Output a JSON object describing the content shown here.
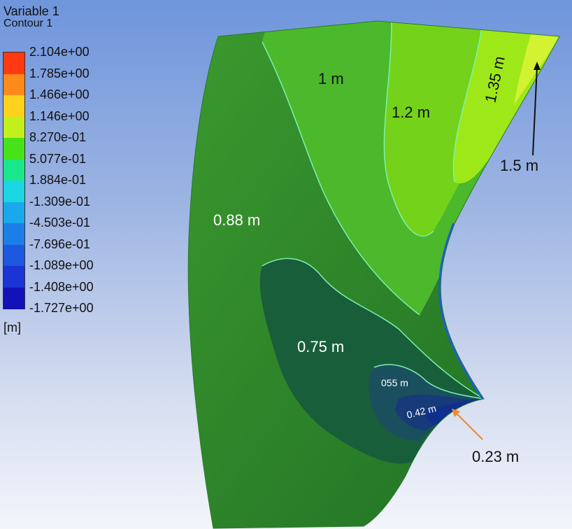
{
  "legend": {
    "title": "Variable 1",
    "subtitle": "Contour 1",
    "unit": "[m]",
    "ticks": [
      "2.104e+00",
      "1.785e+00",
      "1.466e+00",
      "1.146e+00",
      "8.270e-01",
      "5.077e-01",
      "1.884e-01",
      "-1.309e-01",
      "-4.503e-01",
      "-7.696e-01",
      "-1.089e+00",
      "-1.408e+00",
      "-1.727e+00"
    ],
    "colors": [
      "#ff3a12",
      "#ff8a1a",
      "#ffd21e",
      "#c2f01c",
      "#48e21a",
      "#18e88a",
      "#1ad6e0",
      "#1aa8ec",
      "#1c7ee8",
      "#1c58e0",
      "#1a34d6",
      "#1212b8"
    ]
  },
  "contour_labels": [
    {
      "text": "1 m",
      "color": "#111111"
    },
    {
      "text": "1.2 m",
      "color": "#111111"
    },
    {
      "text": "1.35 m",
      "color": "#111111"
    },
    {
      "text": "1.5 m",
      "color": "#111111"
    },
    {
      "text": "0.88 m",
      "color": "#ffffff"
    },
    {
      "text": "0.75 m",
      "color": "#ffffff"
    },
    {
      "text": "055 m",
      "color": "#ffffff"
    },
    {
      "text": "0.42 m",
      "color": "#ffffff"
    },
    {
      "text": "0.23 m",
      "color": "#111111"
    }
  ],
  "colors": {
    "region_088": "#2a8a2a",
    "region_100": "#4cb82c",
    "region_120": "#74d21a",
    "region_135": "#9ee81a",
    "region_150": "#d2f232",
    "region_075": "#185e3a",
    "region_055": "#1a4f5e",
    "region_042": "#173a78",
    "region_023": "#0f2f8e",
    "isoline": "#7cf0b0",
    "arrow_dark": "#111111",
    "arrow_orange": "#f08a2a"
  }
}
